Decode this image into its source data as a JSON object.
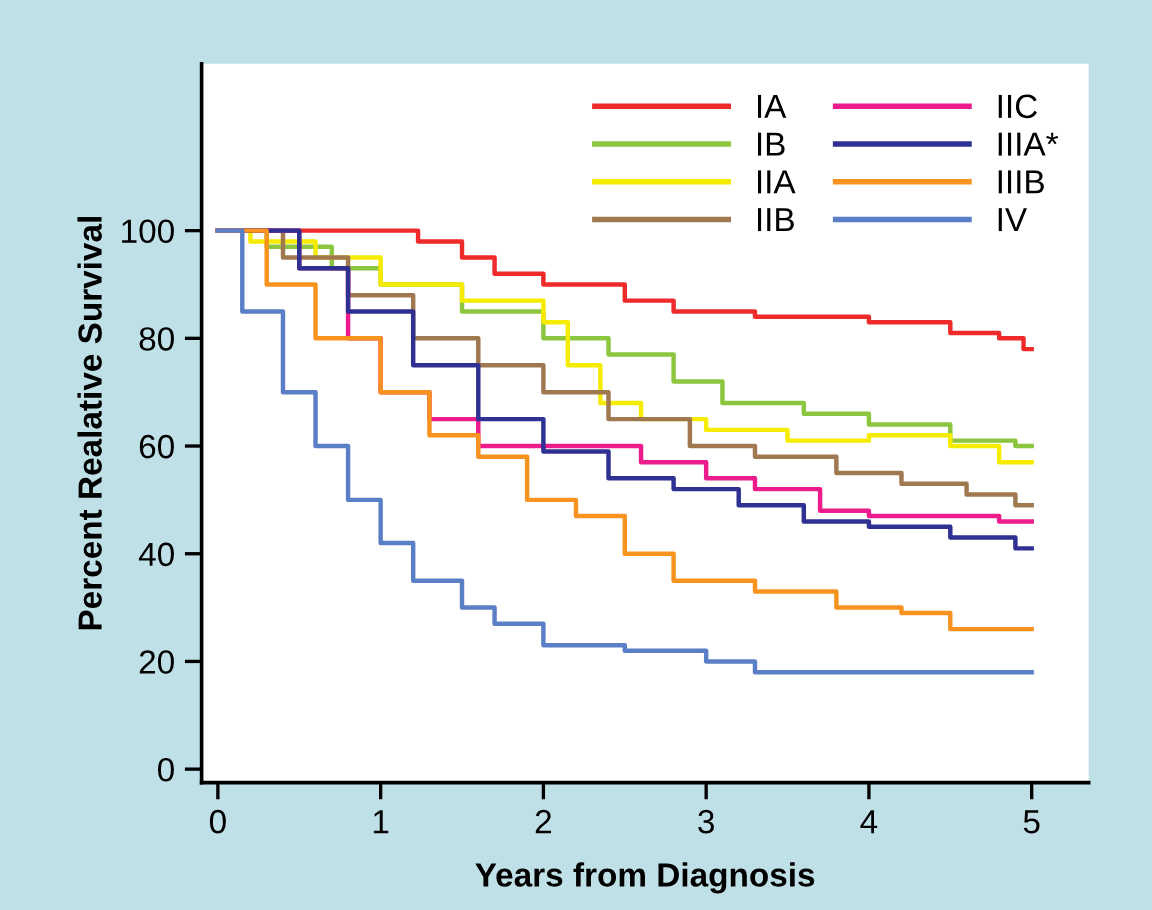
{
  "chart_data": {
    "type": "step",
    "xlabel": "Years from Diagnosis",
    "ylabel": "Percent Realative Survival",
    "xlim": [
      -0.1,
      5.35
    ],
    "ylim": [
      -2.5,
      131
    ],
    "xticks": [
      0,
      1,
      2,
      3,
      4,
      5
    ],
    "yticks": [
      0,
      20,
      40,
      60,
      80,
      100
    ],
    "grid": false,
    "legend": "top right",
    "line_style": "solid",
    "marker": "none",
    "series": [
      {
        "name": "IA",
        "color": "#ee2a2a",
        "x": [
          0,
          1.23,
          1.5,
          1.7,
          2.0,
          2.5,
          2.8,
          3.3,
          4.0,
          4.5,
          4.8,
          4.95,
          5
        ],
        "values": [
          100,
          98,
          95,
          92,
          90,
          87,
          85,
          84,
          83,
          81,
          80,
          78,
          78
        ]
      },
      {
        "name": "IB",
        "color": "#8cc63f",
        "x": [
          0,
          0.3,
          0.7,
          1.0,
          1.5,
          2.0,
          2.4,
          2.8,
          3.1,
          3.6,
          4.0,
          4.5,
          4.9,
          5
        ],
        "values": [
          100,
          97,
          93,
          90,
          85,
          80,
          77,
          72,
          68,
          66,
          64,
          61,
          60,
          60
        ]
      },
      {
        "name": "IIA",
        "color": "#f5ec00",
        "x": [
          0,
          0.2,
          0.6,
          1.0,
          1.5,
          2.0,
          2.15,
          2.35,
          2.6,
          3.0,
          3.5,
          4.0,
          4.5,
          4.8,
          5
        ],
        "values": [
          100,
          98,
          95,
          90,
          87,
          83,
          75,
          68,
          65,
          63,
          61,
          62,
          60,
          57,
          57
        ]
      },
      {
        "name": "IIB",
        "color": "#a07850",
        "x": [
          0,
          0.4,
          0.8,
          1.2,
          1.6,
          2.0,
          2.4,
          2.9,
          3.3,
          3.8,
          4.2,
          4.6,
          4.9,
          5
        ],
        "values": [
          100,
          95,
          88,
          80,
          75,
          70,
          65,
          60,
          58,
          55,
          53,
          51,
          49,
          49
        ]
      },
      {
        "name": "IIC",
        "color": "#ec1c8c",
        "x": [
          0,
          0.5,
          0.8,
          1.0,
          1.3,
          1.6,
          2.5,
          2.6,
          3.0,
          3.3,
          3.7,
          4.0,
          4.8,
          5
        ],
        "values": [
          100,
          93,
          80,
          70,
          65,
          60,
          60,
          57,
          54,
          52,
          48,
          47,
          46,
          46
        ]
      },
      {
        "name": "IIIA*",
        "color": "#2e3192",
        "x": [
          0,
          0.5,
          0.8,
          1.2,
          1.6,
          2.0,
          2.4,
          2.8,
          3.2,
          3.6,
          4.0,
          4.5,
          4.9,
          5
        ],
        "values": [
          100,
          93,
          85,
          75,
          65,
          59,
          54,
          52,
          49,
          46,
          45,
          43,
          41,
          41
        ]
      },
      {
        "name": "IIIB",
        "color": "#f7931e",
        "x": [
          0,
          0.3,
          0.6,
          1.0,
          1.3,
          1.6,
          1.9,
          2.2,
          2.5,
          2.8,
          3.3,
          3.8,
          4.2,
          4.5,
          5
        ],
        "values": [
          100,
          90,
          80,
          70,
          62,
          58,
          50,
          47,
          40,
          35,
          33,
          30,
          29,
          26,
          26
        ]
      },
      {
        "name": "IV",
        "color": "#5b7fc7",
        "x": [
          0,
          0.15,
          0.4,
          0.6,
          0.8,
          1.0,
          1.2,
          1.5,
          1.7,
          2.0,
          2.5,
          3.0,
          3.3,
          5
        ],
        "values": [
          100,
          85,
          70,
          60,
          50,
          42,
          35,
          30,
          27,
          23,
          22,
          20,
          18,
          18
        ]
      }
    ]
  }
}
